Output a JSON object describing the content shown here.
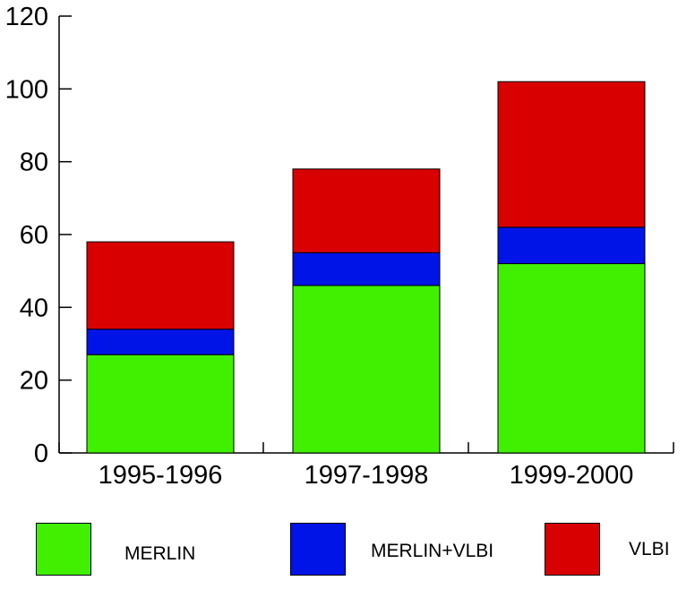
{
  "chart_data": {
    "type": "bar",
    "stacked": true,
    "categories": [
      "1995-1996",
      "1997-1998",
      "1999-2000"
    ],
    "series": [
      {
        "name": "MERLIN",
        "values": [
          27,
          46,
          52
        ],
        "color": "#40f000"
      },
      {
        "name": "MERLIN+VLBI",
        "values": [
          7,
          9,
          10
        ],
        "color": "#0014e8"
      },
      {
        "name": "VLBI",
        "values": [
          24,
          23,
          40
        ],
        "color": "#d80000"
      }
    ],
    "yticks": [
      "0",
      "20",
      "40",
      "60",
      "80",
      "100",
      "120"
    ],
    "ylim": [
      0,
      120
    ],
    "grid": false,
    "legend_position": "bottom"
  }
}
